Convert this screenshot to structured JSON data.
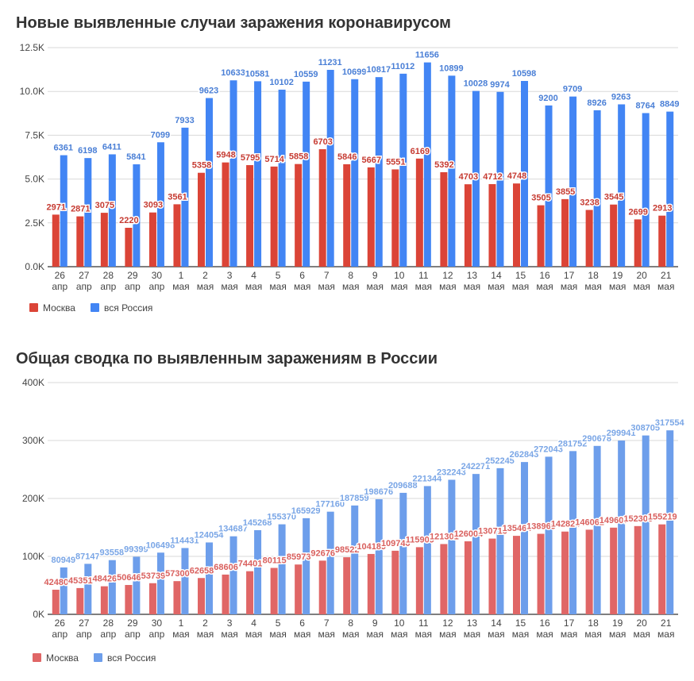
{
  "chart_data": [
    {
      "type": "bar",
      "title": "Новые выявленные случаи заражения коронавирусом",
      "categories": [
        [
          "26",
          "апр"
        ],
        [
          "27",
          "апр"
        ],
        [
          "28",
          "апр"
        ],
        [
          "29",
          "апр"
        ],
        [
          "30",
          "апр"
        ],
        [
          "1",
          "мая"
        ],
        [
          "2",
          "мая"
        ],
        [
          "3",
          "мая"
        ],
        [
          "4",
          "мая"
        ],
        [
          "5",
          "мая"
        ],
        [
          "6",
          "мая"
        ],
        [
          "7",
          "мая"
        ],
        [
          "8",
          "мая"
        ],
        [
          "9",
          "мая"
        ],
        [
          "10",
          "мая"
        ],
        [
          "11",
          "мая"
        ],
        [
          "12",
          "мая"
        ],
        [
          "13",
          "мая"
        ],
        [
          "14",
          "мая"
        ],
        [
          "15",
          "мая"
        ],
        [
          "16",
          "мая"
        ],
        [
          "17",
          "мая"
        ],
        [
          "18",
          "мая"
        ],
        [
          "19",
          "мая"
        ],
        [
          "20",
          "мая"
        ],
        [
          "21",
          "мая"
        ]
      ],
      "yticks": [
        "0.0K",
        "2.5K",
        "5.0K",
        "7.5K",
        "10.0K",
        "12.5K"
      ],
      "ylim": [
        0,
        12500
      ],
      "grid": true,
      "legend_position": "bottom-left",
      "series": [
        {
          "name": "Москва",
          "color": "#db4437",
          "label_color": "#c63b32",
          "values": [
            2971,
            2871,
            3075,
            2220,
            3093,
            3561,
            5358,
            5948,
            5795,
            5714,
            5858,
            6703,
            5846,
            5667,
            5551,
            6169,
            5392,
            4703,
            4712,
            4748,
            3505,
            3855,
            3238,
            3545,
            2699,
            2913
          ],
          "labels": [
            "2971",
            "2871",
            "3075",
            "2220",
            "3093",
            "3561",
            "5358",
            "5948",
            "5795",
            "5714",
            "5858",
            "6703",
            "5846",
            "5667",
            "5551",
            "6169",
            "5392",
            "4703",
            "4712",
            "4748",
            "3505",
            "3855",
            "3238",
            "3545",
            "2699",
            "2913"
          ]
        },
        {
          "name": "вся Россия",
          "color": "#4285f4",
          "label_color": "#4a7fd6",
          "values": [
            6361,
            6198,
            6411,
            5841,
            7099,
            7933,
            9623,
            10633,
            10581,
            10102,
            10559,
            11231,
            10699,
            10817,
            11012,
            11656,
            10899,
            10028,
            9974,
            10598,
            9200,
            9709,
            8926,
            9263,
            8764,
            8849
          ],
          "labels": [
            "6361",
            "6198",
            "6411",
            "5841",
            "7099",
            "7933",
            "9623",
            "10633",
            "10581",
            "10102",
            "10559",
            "11231",
            "10699",
            "10817",
            "11012",
            "11656",
            "10899",
            "10028",
            "9974",
            "10598",
            "9200",
            "9709",
            "8926",
            "9263",
            "8764",
            "8849"
          ]
        }
      ]
    },
    {
      "type": "bar",
      "title": "Общая сводка по выявленным заражениям в России",
      "categories": [
        [
          "26",
          "апр"
        ],
        [
          "27",
          "апр"
        ],
        [
          "28",
          "апр"
        ],
        [
          "29",
          "апр"
        ],
        [
          "30",
          "апр"
        ],
        [
          "1",
          "мая"
        ],
        [
          "2",
          "мая"
        ],
        [
          "3",
          "мая"
        ],
        [
          "4",
          "мая"
        ],
        [
          "5",
          "мая"
        ],
        [
          "6",
          "мая"
        ],
        [
          "7",
          "мая"
        ],
        [
          "8",
          "мая"
        ],
        [
          "9",
          "мая"
        ],
        [
          "10",
          "мая"
        ],
        [
          "11",
          "мая"
        ],
        [
          "12",
          "мая"
        ],
        [
          "13",
          "мая"
        ],
        [
          "14",
          "мая"
        ],
        [
          "15",
          "мая"
        ],
        [
          "16",
          "мая"
        ],
        [
          "17",
          "мая"
        ],
        [
          "18",
          "мая"
        ],
        [
          "19",
          "мая"
        ],
        [
          "20",
          "мая"
        ],
        [
          "21",
          "мая"
        ]
      ],
      "yticks": [
        "0K",
        "100K",
        "200K",
        "300K",
        "400K"
      ],
      "ylim": [
        0,
        400000
      ],
      "grid": true,
      "legend_position": "bottom-left",
      "series": [
        {
          "name": "Москва",
          "color": "#e06666",
          "label_color": "#d9605e",
          "values": [
            42480,
            45351,
            48426,
            50646,
            53739,
            57300,
            62658,
            68606,
            74401,
            80115,
            85973,
            92676,
            98522,
            104189,
            109740,
            115909,
            121301,
            126004,
            130716,
            135464,
            138969,
            142824,
            146062,
            149607,
            152306,
            155219
          ],
          "labels": [
            "42480",
            "45351",
            "48426",
            "50646",
            "53739",
            "57300",
            "62658",
            "68606",
            "74401",
            "80115",
            "85973",
            "92676",
            "98522",
            "104189",
            "109740",
            "115909",
            "121301",
            "126004",
            "130716",
            "135464",
            "138969",
            "142824",
            "146062",
            "149607",
            "152306",
            "155219"
          ]
        },
        {
          "name": "вся Россия",
          "color": "#6d9eeb",
          "label_color": "#7aa6e6",
          "values": [
            80949,
            87147,
            93558,
            99399,
            106498,
            114431,
            124054,
            134687,
            145268,
            155370,
            165929,
            177160,
            187859,
            198676,
            209688,
            221344,
            232243,
            242271,
            252245,
            262843,
            272043,
            281752,
            290678,
            299941,
            308705,
            317554
          ],
          "labels": [
            "80949",
            "87147",
            "93558",
            "99399",
            "106498",
            "114431",
            "124054",
            "134687",
            "145268",
            "155370",
            "165929",
            "177160",
            "187859",
            "198676",
            "209688",
            "221344",
            "232243",
            "242271",
            "252245",
            "262843",
            "272043",
            "281752",
            "290678",
            "299941",
            "308705",
            "317554"
          ]
        }
      ]
    }
  ]
}
